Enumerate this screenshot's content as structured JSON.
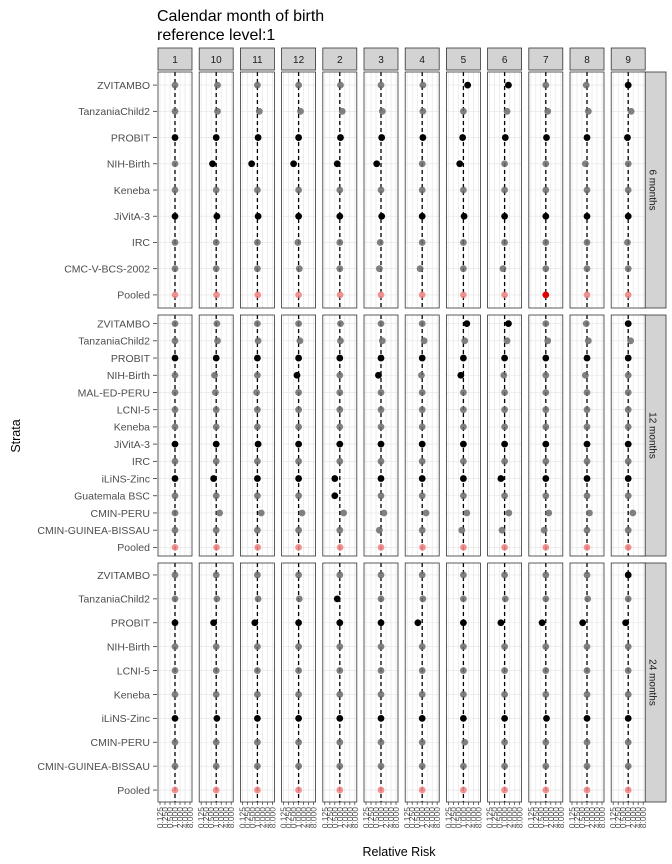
{
  "chart_data": {
    "type": "scatter",
    "title": "Calendar month of birth",
    "subtitle": "reference level:1",
    "xlabel": "Relative Risk",
    "ylabel": "Strata",
    "x_scale": "log",
    "x_ticks": [
      "0.125",
      "0.250",
      "0.500",
      "1.000",
      "2.000",
      "4.000",
      "8.000"
    ],
    "x_range": [
      0.125,
      8
    ],
    "reference_line": 1,
    "columns": [
      "1",
      "10",
      "11",
      "12",
      "2",
      "3",
      "4",
      "5",
      "6",
      "7",
      "8",
      "9"
    ],
    "colors": {
      "significant": "#000000",
      "nonsignificant": "#6b6b6b",
      "pooled": "#f08080",
      "pooled_significant": "#e00000",
      "strip": "#d3d3d3"
    },
    "panels": [
      {
        "label": "6 months",
        "strata": [
          "ZVITAMBO",
          "TanzaniaChild2",
          "PROBIT",
          "NIH-Birth",
          "Keneba",
          "JiVitA-3",
          "IRC",
          "CMC-V-BCS-2002",
          "Pooled"
        ],
        "rr": [
          [
            1.0,
            1.0,
            1.0,
            1.0,
            1.0,
            1.0,
            1.0,
            1.0,
            1.0
          ],
          [
            1.2,
            1.2,
            1.0,
            0.6,
            1.0,
            1.1,
            1.0,
            1.0,
            1.05
          ],
          [
            1.0,
            1.3,
            1.1,
            0.45,
            1.0,
            1.1,
            1.0,
            1.0,
            1.05
          ],
          [
            1.0,
            1.3,
            1.0,
            0.5,
            1.0,
            1.0,
            0.9,
            1.1,
            1.0
          ],
          [
            1.1,
            1.4,
            1.1,
            0.7,
            1.0,
            1.0,
            1.0,
            1.0,
            1.05
          ],
          [
            1.0,
            1.2,
            1.1,
            0.55,
            1.0,
            1.1,
            0.9,
            0.8,
            1.0
          ],
          [
            1.1,
            1.1,
            1.1,
            1.0,
            1.0,
            1.0,
            1.0,
            0.75,
            1.0
          ],
          [
            1.8,
            1.0,
            0.9,
            0.6,
            1.0,
            1.1,
            1.0,
            1.0,
            1.0
          ],
          [
            1.7,
            1.4,
            1.1,
            1.0,
            1.0,
            1.0,
            1.0,
            0.8,
            1.0
          ],
          [
            1.0,
            1.3,
            1.1,
            1.0,
            1.0,
            1.0,
            1.0,
            1.0,
            1.0
          ],
          [
            0.9,
            1.2,
            1.0,
            0.8,
            1.0,
            1.0,
            1.0,
            1.0,
            1.0
          ],
          [
            1.0,
            1.5,
            0.9,
            1.0,
            1.0,
            1.0,
            0.9,
            1.0,
            1.0
          ]
        ],
        "sig": [
          [
            0,
            0,
            1,
            0,
            0,
            1,
            0,
            0,
            0
          ],
          [
            0,
            0,
            1,
            1,
            0,
            1,
            0,
            0,
            0
          ],
          [
            0,
            0,
            1,
            1,
            0,
            1,
            0,
            0,
            0
          ],
          [
            0,
            0,
            1,
            1,
            0,
            1,
            0,
            0,
            0
          ],
          [
            0,
            0,
            1,
            1,
            0,
            1,
            0,
            0,
            0
          ],
          [
            0,
            0,
            1,
            1,
            0,
            1,
            0,
            0,
            0
          ],
          [
            0,
            0,
            1,
            0,
            0,
            1,
            0,
            0,
            0
          ],
          [
            1,
            0,
            1,
            1,
            0,
            1,
            0,
            0,
            0
          ],
          [
            1,
            0,
            1,
            0,
            0,
            1,
            0,
            0,
            0
          ],
          [
            0,
            0,
            1,
            0,
            0,
            1,
            0,
            0,
            2
          ],
          [
            0,
            0,
            1,
            0,
            0,
            1,
            0,
            0,
            0
          ],
          [
            1,
            0,
            1,
            0,
            0,
            1,
            0,
            0,
            0
          ]
        ]
      },
      {
        "label": "12 months",
        "strata": [
          "ZVITAMBO",
          "TanzaniaChild2",
          "PROBIT",
          "NIH-Birth",
          "MAL-ED-PERU",
          "LCNI-5",
          "Keneba",
          "JiVitA-3",
          "IRC",
          "iLiNS-Zinc",
          "Guatemala BSC",
          "CMIN-PERU",
          "CMIN-GUINEA-BISSAU",
          "Pooled"
        ],
        "rr": [
          [
            1.0,
            1.0,
            1.0,
            1.0,
            1.0,
            1.0,
            1.0,
            1.0,
            1.0,
            1.0,
            1.0,
            1.0,
            1.0,
            1.0
          ],
          [
            1.1,
            1.2,
            1.0,
            0.8,
            0.9,
            1.0,
            1.0,
            1.0,
            1.0,
            0.7,
            1.0,
            1.6,
            1.0,
            1.05
          ],
          [
            1.0,
            1.1,
            1.0,
            1.0,
            0.9,
            1.0,
            1.0,
            1.1,
            1.0,
            1.0,
            1.0,
            1.7,
            1.0,
            1.05
          ],
          [
            1.0,
            1.2,
            1.0,
            0.8,
            1.0,
            1.0,
            1.0,
            1.0,
            1.0,
            1.0,
            1.0,
            1.6,
            1.0,
            1.0
          ],
          [
            1.1,
            1.1,
            1.0,
            1.0,
            1.0,
            1.0,
            1.0,
            1.0,
            1.0,
            0.5,
            0.5,
            1.7,
            1.0,
            1.05
          ],
          [
            1.0,
            1.2,
            1.0,
            0.7,
            1.0,
            1.0,
            1.0,
            1.0,
            1.0,
            1.0,
            1.0,
            1.5,
            0.8,
            1.0
          ],
          [
            1.0,
            1.3,
            1.0,
            0.9,
            1.0,
            1.0,
            1.0,
            1.0,
            1.0,
            1.0,
            1.0,
            1.7,
            1.0,
            1.05
          ],
          [
            1.6,
            1.2,
            1.0,
            0.7,
            1.0,
            1.0,
            1.0,
            1.0,
            1.0,
            1.0,
            1.0,
            1.6,
            0.8,
            1.0
          ],
          [
            1.7,
            1.4,
            1.0,
            0.9,
            1.0,
            1.0,
            1.0,
            1.0,
            1.0,
            0.6,
            1.0,
            1.8,
            0.7,
            1.0
          ],
          [
            1.0,
            1.3,
            1.0,
            1.0,
            1.0,
            1.0,
            1.0,
            1.0,
            1.0,
            1.0,
            1.0,
            1.5,
            0.8,
            1.0
          ],
          [
            0.9,
            1.2,
            1.0,
            0.8,
            1.0,
            1.0,
            1.0,
            1.0,
            1.0,
            1.0,
            1.0,
            1.4,
            1.0,
            1.0
          ],
          [
            1.0,
            1.4,
            1.0,
            1.0,
            1.0,
            1.0,
            1.0,
            1.0,
            1.0,
            1.0,
            1.0,
            1.9,
            1.0,
            1.0
          ]
        ],
        "sig": [
          [
            0,
            0,
            1,
            0,
            0,
            0,
            0,
            1,
            0,
            1,
            0,
            0,
            0,
            0
          ],
          [
            0,
            0,
            1,
            0,
            0,
            0,
            0,
            1,
            0,
            1,
            0,
            0,
            0,
            0
          ],
          [
            0,
            0,
            1,
            0,
            0,
            0,
            0,
            1,
            0,
            1,
            0,
            0,
            0,
            0
          ],
          [
            0,
            0,
            1,
            1,
            0,
            0,
            0,
            1,
            0,
            1,
            0,
            0,
            0,
            0
          ],
          [
            0,
            0,
            1,
            0,
            0,
            0,
            0,
            1,
            0,
            1,
            1,
            0,
            0,
            0
          ],
          [
            0,
            0,
            1,
            1,
            0,
            0,
            0,
            1,
            0,
            1,
            0,
            0,
            0,
            0
          ],
          [
            0,
            0,
            1,
            0,
            0,
            0,
            0,
            1,
            0,
            1,
            0,
            0,
            0,
            0
          ],
          [
            1,
            0,
            1,
            1,
            0,
            0,
            0,
            1,
            0,
            1,
            0,
            0,
            0,
            0
          ],
          [
            1,
            0,
            1,
            0,
            0,
            0,
            0,
            1,
            0,
            1,
            0,
            0,
            0,
            0
          ],
          [
            0,
            0,
            1,
            0,
            0,
            0,
            0,
            1,
            0,
            1,
            0,
            0,
            0,
            0
          ],
          [
            0,
            0,
            1,
            0,
            0,
            0,
            0,
            1,
            0,
            1,
            0,
            0,
            0,
            0
          ],
          [
            1,
            0,
            1,
            0,
            0,
            0,
            0,
            1,
            0,
            1,
            0,
            0,
            0,
            0
          ]
        ]
      },
      {
        "label": "24 months",
        "strata": [
          "ZVITAMBO",
          "TanzaniaChild2",
          "PROBIT",
          "NIH-Birth",
          "LCNI-5",
          "Keneba",
          "iLiNS-Zinc",
          "CMIN-PERU",
          "CMIN-GUINEA-BISSAU",
          "Pooled"
        ],
        "rr": [
          [
            1.0,
            1.0,
            1.0,
            1.0,
            1.0,
            1.0,
            1.0,
            1.0,
            1.0,
            1.0
          ],
          [
            1.0,
            1.1,
            0.7,
            1.0,
            1.0,
            1.0,
            1.1,
            1.0,
            1.0,
            1.0
          ],
          [
            1.0,
            1.1,
            0.7,
            1.0,
            1.0,
            1.0,
            1.0,
            1.0,
            1.0,
            1.0
          ],
          [
            1.0,
            1.1,
            1.0,
            1.0,
            1.0,
            1.0,
            1.0,
            1.0,
            1.0,
            1.0
          ],
          [
            1.0,
            0.7,
            1.0,
            1.0,
            1.0,
            1.0,
            1.0,
            1.0,
            1.0,
            1.0
          ],
          [
            1.0,
            1.0,
            1.0,
            1.0,
            1.0,
            1.0,
            1.0,
            1.0,
            1.0,
            1.0
          ],
          [
            1.0,
            1.1,
            0.55,
            1.0,
            1.0,
            1.0,
            1.0,
            1.0,
            1.0,
            1.0
          ],
          [
            1.0,
            1.0,
            1.0,
            1.0,
            1.0,
            1.0,
            1.0,
            1.2,
            1.0,
            1.0
          ],
          [
            1.0,
            1.1,
            0.6,
            1.0,
            1.0,
            1.0,
            1.0,
            1.0,
            1.0,
            1.0
          ],
          [
            1.0,
            1.0,
            0.6,
            1.0,
            1.0,
            1.0,
            1.1,
            1.0,
            1.0,
            1.0
          ],
          [
            1.0,
            1.1,
            0.55,
            1.0,
            1.0,
            1.0,
            1.0,
            1.0,
            1.0,
            1.0
          ],
          [
            1.0,
            1.0,
            0.7,
            1.0,
            1.0,
            1.0,
            1.0,
            1.0,
            1.0,
            1.0
          ]
        ],
        "sig": [
          [
            0,
            0,
            1,
            0,
            0,
            0,
            1,
            0,
            0,
            0
          ],
          [
            0,
            0,
            1,
            0,
            0,
            0,
            1,
            0,
            0,
            0
          ],
          [
            0,
            0,
            1,
            0,
            0,
            0,
            1,
            0,
            0,
            0
          ],
          [
            0,
            0,
            1,
            0,
            0,
            0,
            1,
            0,
            0,
            0
          ],
          [
            0,
            1,
            1,
            0,
            0,
            0,
            1,
            0,
            0,
            0
          ],
          [
            0,
            0,
            1,
            0,
            0,
            0,
            1,
            0,
            0,
            0
          ],
          [
            0,
            0,
            1,
            0,
            0,
            0,
            1,
            0,
            0,
            0
          ],
          [
            0,
            0,
            1,
            0,
            0,
            0,
            1,
            0,
            0,
            0
          ],
          [
            0,
            0,
            1,
            0,
            0,
            0,
            1,
            0,
            0,
            0
          ],
          [
            0,
            0,
            1,
            0,
            0,
            0,
            1,
            0,
            0,
            0
          ],
          [
            0,
            0,
            1,
            0,
            0,
            0,
            1,
            0,
            0,
            0
          ],
          [
            1,
            0,
            1,
            0,
            0,
            0,
            1,
            0,
            0,
            0
          ]
        ]
      }
    ]
  }
}
